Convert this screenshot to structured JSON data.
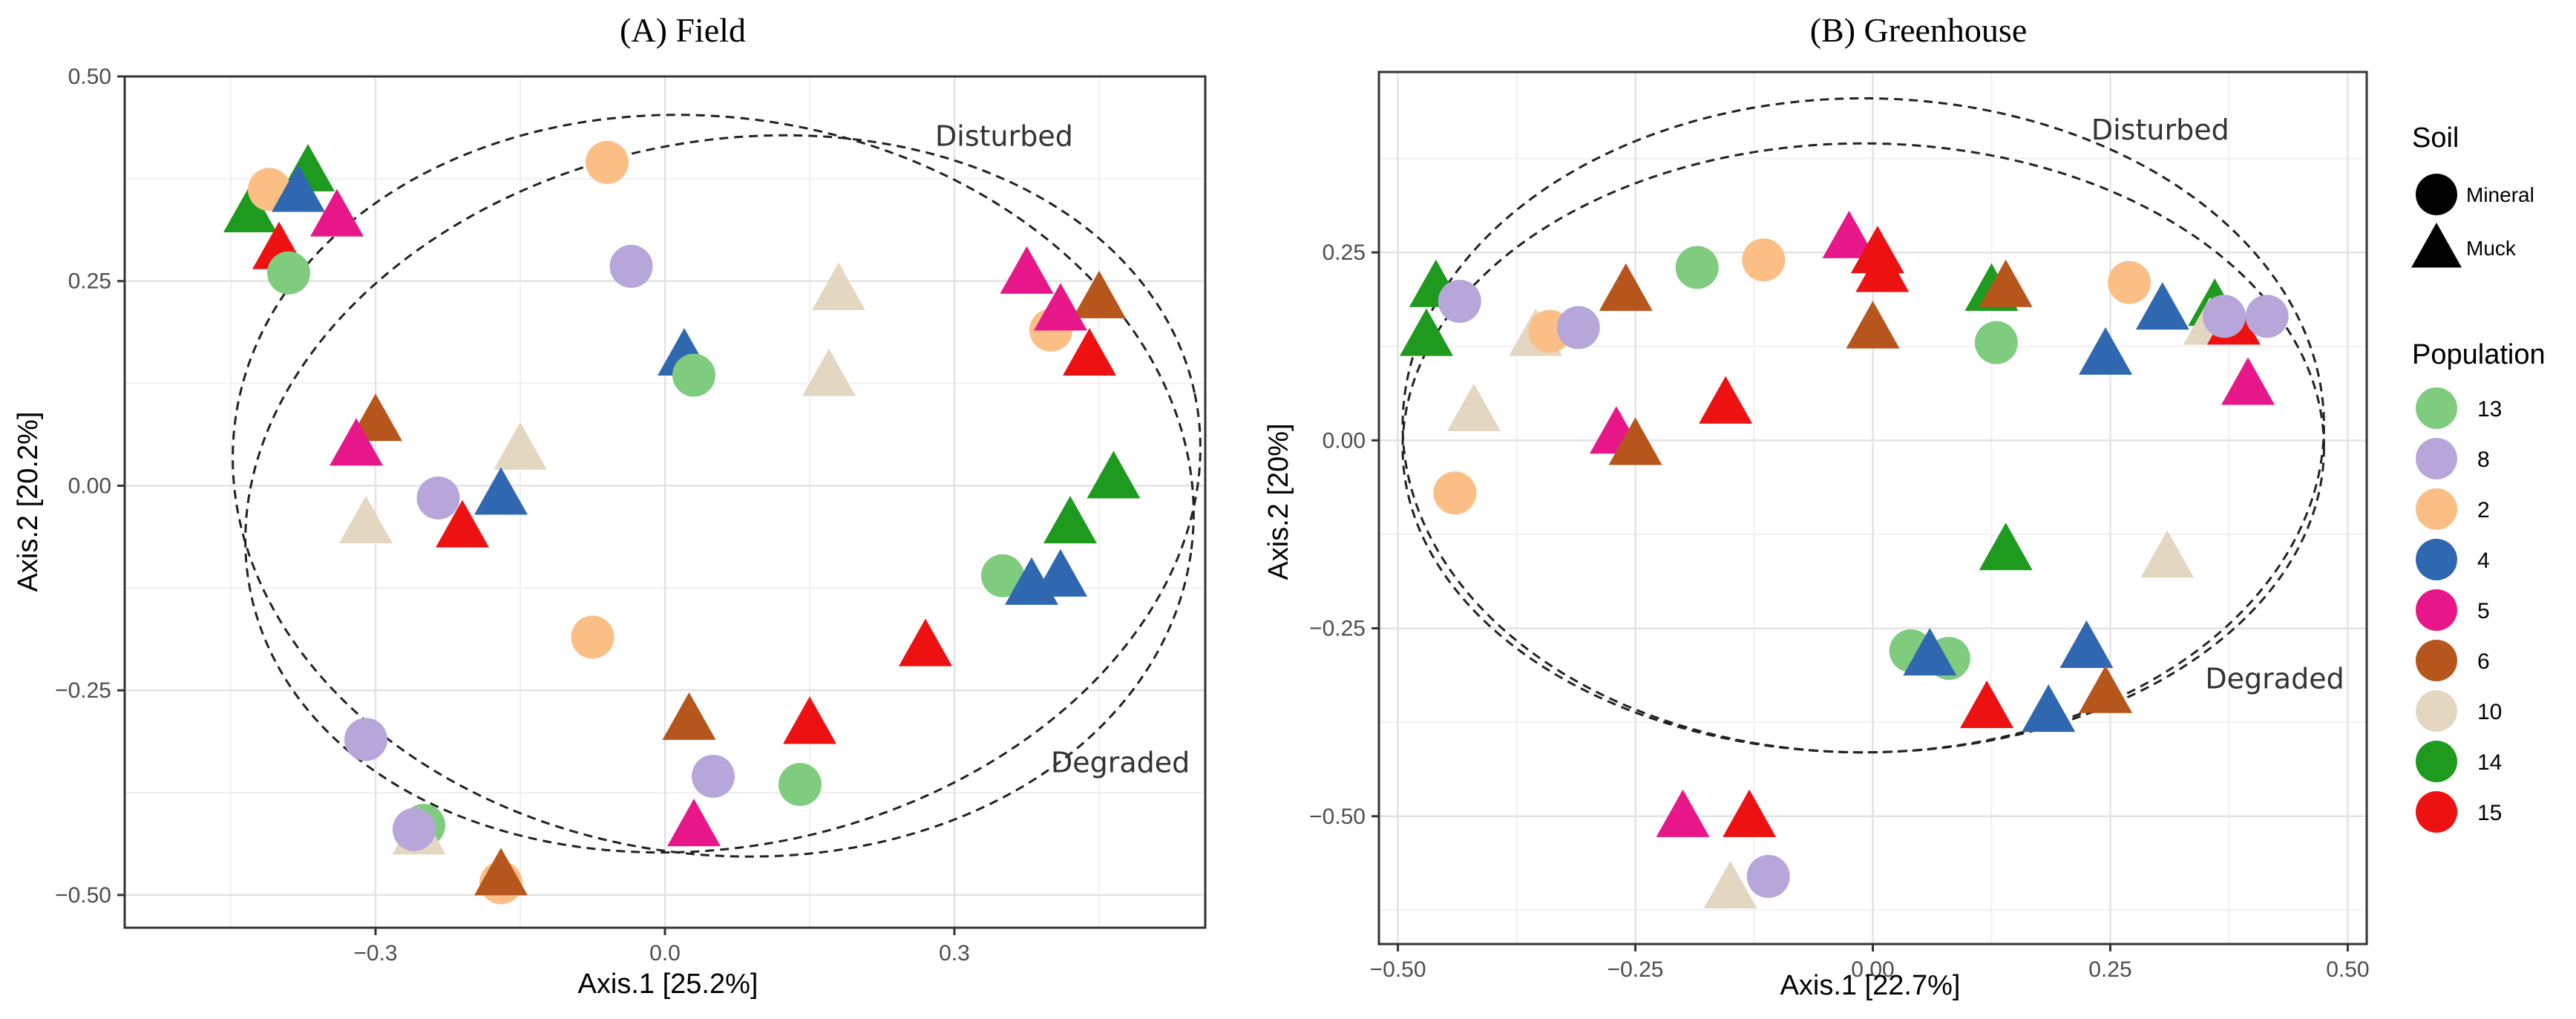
{
  "chart_data": [
    {
      "type": "scatter",
      "title": "(A) Field",
      "xlabel": "Axis.1   [25.2%]",
      "ylabel": "Axis.2   [20.2%]",
      "xlim": [
        -0.56,
        0.56
      ],
      "ylim": [
        -0.54,
        0.5
      ],
      "xticks": [
        -0.3,
        0.0,
        0.3
      ],
      "xtick_labels": [
        "−0.3",
        "0.0",
        "0.3"
      ],
      "yticks": [
        -0.5,
        -0.25,
        0.0,
        0.25,
        0.5
      ],
      "ytick_labels": [
        "−0.50",
        "−0.25",
        "0.00",
        "0.25",
        "0.50"
      ],
      "grid": true,
      "annotations": [
        {
          "text": "Disturbed",
          "x": 0.28,
          "y": 0.415
        },
        {
          "text": "Degraded",
          "x": 0.4,
          "y": -0.35
        }
      ],
      "ellipses": [
        {
          "label": "Disturbed",
          "cx": 0.05,
          "cy": 0.0,
          "rx": 0.5,
          "ry": 0.45,
          "angle": -8
        },
        {
          "label": "Degraded",
          "cx": 0.06,
          "cy": -0.01,
          "rx": 0.5,
          "ry": 0.43,
          "angle": 12
        }
      ],
      "points": [
        {
          "x": -0.43,
          "y": 0.335,
          "pop": "14",
          "soil": "Muck"
        },
        {
          "x": -0.37,
          "y": 0.385,
          "pop": "14",
          "soil": "Muck"
        },
        {
          "x": -0.41,
          "y": 0.362,
          "pop": "2",
          "soil": "Mineral"
        },
        {
          "x": -0.38,
          "y": 0.36,
          "pop": "4",
          "soil": "Muck"
        },
        {
          "x": -0.34,
          "y": 0.33,
          "pop": "5",
          "soil": "Muck"
        },
        {
          "x": -0.4,
          "y": 0.29,
          "pop": "15",
          "soil": "Muck"
        },
        {
          "x": -0.39,
          "y": 0.26,
          "pop": "13",
          "soil": "Mineral"
        },
        {
          "x": -0.06,
          "y": 0.395,
          "pop": "2",
          "soil": "Mineral"
        },
        {
          "x": -0.035,
          "y": 0.268,
          "pop": "8",
          "soil": "Mineral"
        },
        {
          "x": 0.18,
          "y": 0.24,
          "pop": "10",
          "soil": "Muck"
        },
        {
          "x": 0.17,
          "y": 0.135,
          "pop": "10",
          "soil": "Muck"
        },
        {
          "x": 0.02,
          "y": 0.16,
          "pop": "4",
          "soil": "Muck"
        },
        {
          "x": 0.03,
          "y": 0.135,
          "pop": "13",
          "soil": "Mineral"
        },
        {
          "x": 0.375,
          "y": 0.26,
          "pop": "5",
          "soil": "Muck"
        },
        {
          "x": 0.45,
          "y": 0.23,
          "pop": "6",
          "soil": "Muck"
        },
        {
          "x": 0.4,
          "y": 0.19,
          "pop": "2",
          "soil": "Mineral"
        },
        {
          "x": 0.41,
          "y": 0.215,
          "pop": "5",
          "soil": "Muck"
        },
        {
          "x": 0.44,
          "y": 0.16,
          "pop": "15",
          "soil": "Muck"
        },
        {
          "x": -0.3,
          "y": 0.08,
          "pop": "6",
          "soil": "Muck"
        },
        {
          "x": -0.32,
          "y": 0.05,
          "pop": "5",
          "soil": "Muck"
        },
        {
          "x": -0.15,
          "y": 0.045,
          "pop": "10",
          "soil": "Muck"
        },
        {
          "x": -0.31,
          "y": -0.045,
          "pop": "10",
          "soil": "Muck"
        },
        {
          "x": -0.235,
          "y": -0.015,
          "pop": "8",
          "soil": "Mineral"
        },
        {
          "x": -0.17,
          "y": -0.01,
          "pop": "4",
          "soil": "Muck"
        },
        {
          "x": -0.21,
          "y": -0.05,
          "pop": "15",
          "soil": "Muck"
        },
        {
          "x": 0.465,
          "y": 0.01,
          "pop": "14",
          "soil": "Muck"
        },
        {
          "x": 0.42,
          "y": -0.045,
          "pop": "14",
          "soil": "Muck"
        },
        {
          "x": 0.35,
          "y": -0.11,
          "pop": "13",
          "soil": "Mineral"
        },
        {
          "x": 0.38,
          "y": -0.12,
          "pop": "4",
          "soil": "Muck"
        },
        {
          "x": 0.41,
          "y": -0.11,
          "pop": "4",
          "soil": "Muck"
        },
        {
          "x": -0.075,
          "y": -0.185,
          "pop": "2",
          "soil": "Mineral"
        },
        {
          "x": 0.27,
          "y": -0.195,
          "pop": "15",
          "soil": "Muck"
        },
        {
          "x": 0.025,
          "y": -0.285,
          "pop": "6",
          "soil": "Muck"
        },
        {
          "x": 0.15,
          "y": -0.29,
          "pop": "15",
          "soil": "Muck"
        },
        {
          "x": -0.31,
          "y": -0.31,
          "pop": "8",
          "soil": "Mineral"
        },
        {
          "x": 0.05,
          "y": -0.355,
          "pop": "8",
          "soil": "Mineral"
        },
        {
          "x": 0.14,
          "y": -0.365,
          "pop": "13",
          "soil": "Mineral"
        },
        {
          "x": -0.25,
          "y": -0.415,
          "pop": "13",
          "soil": "Mineral"
        },
        {
          "x": -0.255,
          "y": -0.425,
          "pop": "10",
          "soil": "Muck"
        },
        {
          "x": -0.26,
          "y": -0.42,
          "pop": "8",
          "soil": "Mineral"
        },
        {
          "x": 0.03,
          "y": -0.415,
          "pop": "5",
          "soil": "Muck"
        },
        {
          "x": -0.17,
          "y": -0.485,
          "pop": "2",
          "soil": "Mineral"
        },
        {
          "x": -0.17,
          "y": -0.475,
          "pop": "6",
          "soil": "Muck"
        }
      ]
    },
    {
      "type": "scatter",
      "title": "(B) Greenhouse",
      "xlabel": "Axis.1   [22.7%]",
      "ylabel": "Axis.2   [20%]",
      "xlim": [
        -0.52,
        0.52
      ],
      "ylim": [
        -0.67,
        0.49
      ],
      "xticks": [
        -0.5,
        -0.25,
        0.0,
        0.25,
        0.5
      ],
      "xtick_labels": [
        "−0.50",
        "−0.25",
        "0.00",
        "0.25",
        "0.50"
      ],
      "yticks": [
        -0.5,
        -0.25,
        0.0,
        0.25
      ],
      "ytick_labels": [
        "−0.50",
        "−0.25",
        "0.00",
        "0.25"
      ],
      "grid": true,
      "annotations": [
        {
          "text": "Disturbed",
          "x": 0.23,
          "y": 0.4
        },
        {
          "text": "Degraded",
          "x": 0.35,
          "y": -0.33
        }
      ],
      "ellipses": [
        {
          "label": "Disturbed",
          "cx": -0.01,
          "cy": 0.02,
          "rx": 0.485,
          "ry": 0.435,
          "angle": 0
        },
        {
          "label": "Degraded",
          "cx": -0.01,
          "cy": -0.01,
          "rx": 0.485,
          "ry": 0.405,
          "angle": 0
        }
      ],
      "points": [
        {
          "x": -0.46,
          "y": 0.205,
          "pop": "14",
          "soil": "Muck"
        },
        {
          "x": -0.47,
          "y": 0.14,
          "pop": "14",
          "soil": "Muck"
        },
        {
          "x": -0.435,
          "y": 0.185,
          "pop": "8",
          "soil": "Mineral"
        },
        {
          "x": -0.355,
          "y": 0.14,
          "pop": "10",
          "soil": "Muck"
        },
        {
          "x": -0.34,
          "y": 0.145,
          "pop": "2",
          "soil": "Mineral"
        },
        {
          "x": -0.31,
          "y": 0.15,
          "pop": "8",
          "soil": "Mineral"
        },
        {
          "x": -0.26,
          "y": 0.2,
          "pop": "6",
          "soil": "Muck"
        },
        {
          "x": -0.185,
          "y": 0.23,
          "pop": "13",
          "soil": "Mineral"
        },
        {
          "x": -0.115,
          "y": 0.24,
          "pop": "2",
          "soil": "Mineral"
        },
        {
          "x": -0.025,
          "y": 0.27,
          "pop": "5",
          "soil": "Muck"
        },
        {
          "x": 0.005,
          "y": 0.25,
          "pop": "15",
          "soil": "Muck"
        },
        {
          "x": 0.01,
          "y": 0.225,
          "pop": "15",
          "soil": "Muck"
        },
        {
          "x": 0.0,
          "y": 0.15,
          "pop": "6",
          "soil": "Muck"
        },
        {
          "x": 0.125,
          "y": 0.2,
          "pop": "14",
          "soil": "Muck"
        },
        {
          "x": 0.14,
          "y": 0.205,
          "pop": "6",
          "soil": "Muck"
        },
        {
          "x": 0.13,
          "y": 0.13,
          "pop": "13",
          "soil": "Mineral"
        },
        {
          "x": 0.27,
          "y": 0.21,
          "pop": "2",
          "soil": "Mineral"
        },
        {
          "x": 0.245,
          "y": 0.115,
          "pop": "4",
          "soil": "Muck"
        },
        {
          "x": 0.305,
          "y": 0.175,
          "pop": "4",
          "soil": "Muck"
        },
        {
          "x": 0.36,
          "y": 0.18,
          "pop": "14",
          "soil": "Muck"
        },
        {
          "x": 0.355,
          "y": 0.155,
          "pop": "10",
          "soil": "Muck"
        },
        {
          "x": 0.38,
          "y": 0.155,
          "pop": "15",
          "soil": "Muck"
        },
        {
          "x": 0.37,
          "y": 0.165,
          "pop": "8",
          "soil": "Mineral"
        },
        {
          "x": 0.415,
          "y": 0.165,
          "pop": "8",
          "soil": "Mineral"
        },
        {
          "x": 0.395,
          "y": 0.075,
          "pop": "5",
          "soil": "Muck"
        },
        {
          "x": -0.42,
          "y": 0.04,
          "pop": "10",
          "soil": "Muck"
        },
        {
          "x": -0.27,
          "y": 0.01,
          "pop": "5",
          "soil": "Muck"
        },
        {
          "x": -0.25,
          "y": -0.005,
          "pop": "6",
          "soil": "Muck"
        },
        {
          "x": -0.155,
          "y": 0.05,
          "pop": "15",
          "soil": "Muck"
        },
        {
          "x": -0.44,
          "y": -0.07,
          "pop": "2",
          "soil": "Mineral"
        },
        {
          "x": 0.14,
          "y": -0.145,
          "pop": "14",
          "soil": "Muck"
        },
        {
          "x": 0.31,
          "y": -0.155,
          "pop": "10",
          "soil": "Muck"
        },
        {
          "x": 0.04,
          "y": -0.28,
          "pop": "13",
          "soil": "Mineral"
        },
        {
          "x": 0.08,
          "y": -0.29,
          "pop": "13",
          "soil": "Mineral"
        },
        {
          "x": 0.06,
          "y": -0.285,
          "pop": "4",
          "soil": "Muck"
        },
        {
          "x": 0.225,
          "y": -0.275,
          "pop": "4",
          "soil": "Muck"
        },
        {
          "x": 0.245,
          "y": -0.335,
          "pop": "6",
          "soil": "Muck"
        },
        {
          "x": 0.185,
          "y": -0.36,
          "pop": "4",
          "soil": "Muck"
        },
        {
          "x": 0.12,
          "y": -0.355,
          "pop": "15",
          "soil": "Muck"
        },
        {
          "x": -0.2,
          "y": -0.5,
          "pop": "5",
          "soil": "Muck"
        },
        {
          "x": -0.13,
          "y": -0.5,
          "pop": "15",
          "soil": "Muck"
        },
        {
          "x": -0.11,
          "y": -0.58,
          "pop": "8",
          "soil": "Mineral"
        },
        {
          "x": -0.15,
          "y": -0.595,
          "pop": "10",
          "soil": "Muck"
        }
      ]
    }
  ],
  "legend": {
    "soil_title": "Soil",
    "soil_items": [
      {
        "label": "Mineral",
        "shape": "circle"
      },
      {
        "label": "Muck",
        "shape": "triangle"
      }
    ],
    "population_title": "Population",
    "population_items": [
      {
        "label": "13",
        "color": "#7fcc7f"
      },
      {
        "label": "8",
        "color": "#b7a6d9"
      },
      {
        "label": "2",
        "color": "#fbbf85"
      },
      {
        "label": "4",
        "color": "#2f68b0"
      },
      {
        "label": "5",
        "color": "#e7178a"
      },
      {
        "label": "6",
        "color": "#b6561c"
      },
      {
        "label": "10",
        "color": "#e3d7c1"
      },
      {
        "label": "14",
        "color": "#1e9a1e"
      },
      {
        "label": "15",
        "color": "#ee1111"
      }
    ]
  }
}
